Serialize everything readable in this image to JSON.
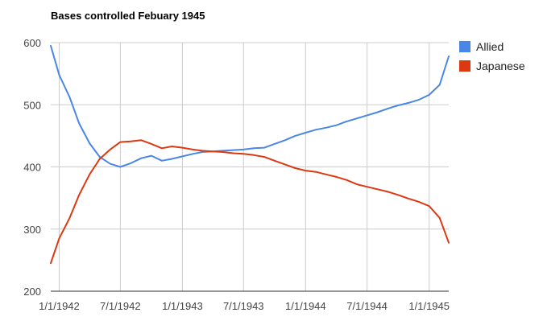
{
  "chart_data": {
    "type": "line",
    "title": "Bases controlled Febuary 1945",
    "xlabel": "",
    "ylabel": "",
    "x_ticks": [
      "1/1/1942",
      "7/1/1942",
      "1/1/1943",
      "7/1/1943",
      "1/1/1944",
      "7/1/1944",
      "1/1/1945"
    ],
    "x": [
      "1941-12-07",
      "1942-01-01",
      "1942-02-01",
      "1942-03-01",
      "1942-04-01",
      "1942-05-01",
      "1942-06-01",
      "1942-07-01",
      "1942-08-01",
      "1942-09-01",
      "1942-10-01",
      "1942-11-01",
      "1942-12-01",
      "1943-01-01",
      "1943-02-01",
      "1943-03-01",
      "1943-04-01",
      "1943-05-01",
      "1943-06-01",
      "1943-07-01",
      "1943-08-01",
      "1943-09-01",
      "1943-10-01",
      "1943-11-01",
      "1943-12-01",
      "1944-01-01",
      "1944-02-01",
      "1944-03-01",
      "1944-04-01",
      "1944-05-01",
      "1944-06-01",
      "1944-07-01",
      "1944-08-01",
      "1944-09-01",
      "1944-10-01",
      "1944-11-01",
      "1944-12-01",
      "1945-01-01",
      "1945-02-01",
      "1945-02-28"
    ],
    "series": [
      {
        "name": "Allied",
        "color": "#4a86e8",
        "values": [
          595,
          548,
          512,
          470,
          438,
          416,
          405,
          400,
          406,
          414,
          418,
          410,
          413,
          417,
          421,
          424,
          425,
          426,
          427,
          428,
          430,
          431,
          437,
          443,
          450,
          455,
          460,
          463,
          467,
          473,
          478,
          483,
          488,
          494,
          499,
          503,
          508,
          516,
          532,
          578
        ]
      },
      {
        "name": "Japanese",
        "color": "#dc3912",
        "values": [
          245,
          285,
          318,
          355,
          388,
          413,
          428,
          440,
          441,
          443,
          437,
          430,
          433,
          431,
          428,
          426,
          425,
          424,
          422,
          421,
          419,
          416,
          410,
          404,
          398,
          394,
          392,
          388,
          384,
          379,
          372,
          368,
          364,
          360,
          355,
          349,
          344,
          337,
          318,
          278
        ]
      }
    ],
    "ylim": [
      200,
      600
    ],
    "y_ticks": [
      200,
      300,
      400,
      500,
      600
    ],
    "grid": true,
    "legend": "right"
  }
}
